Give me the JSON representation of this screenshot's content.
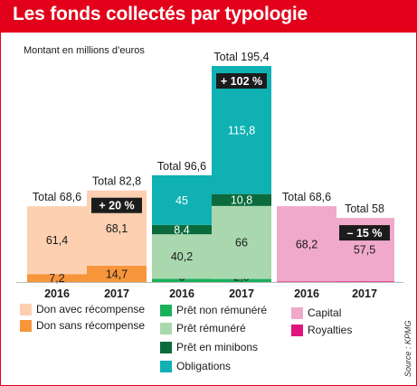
{
  "title": "Les fonds collectés par typologie",
  "subtitle": "Montant en millions d’euros",
  "source": "Source : KPMG",
  "chart_data": {
    "type": "bar",
    "stacked": true,
    "ylabel": "Montant en millions d’euros",
    "ylim": [
      0,
      195.4
    ],
    "groups": [
      {
        "bars": [
          {
            "year": "2016",
            "total_label": "Total 68,6",
            "change_label": "",
            "segments": [
              {
                "series": "Don sans récompense",
                "value": 7.2,
                "label": "7,2"
              },
              {
                "series": "Don avec récompense",
                "value": 61.4,
                "label": "61,4"
              }
            ]
          },
          {
            "year": "2017",
            "total_label": "Total 82,8",
            "change_label": "+ 20 %",
            "segments": [
              {
                "series": "Don sans récompense",
                "value": 14.7,
                "label": "14,7"
              },
              {
                "series": "Don avec récompense",
                "value": 68.1,
                "label": "68,1"
              }
            ]
          }
        ]
      },
      {
        "bars": [
          {
            "year": "2016",
            "total_label": "Total 96,6",
            "change_label": "",
            "segments": [
              {
                "series": "Prêt non rémunéré",
                "value": 3,
                "label": "3"
              },
              {
                "series": "Prêt rémunéré",
                "value": 40.2,
                "label": "40,2"
              },
              {
                "series": "Prêt en minibons",
                "value": 8.4,
                "label": "8,4"
              },
              {
                "series": "Obligations",
                "value": 45,
                "label": "45"
              }
            ]
          },
          {
            "year": "2017",
            "total_label": "Total 195,4",
            "change_label": "+ 102 %",
            "segments": [
              {
                "series": "Prêt non rémunéré",
                "value": 2.8,
                "label": "2,8"
              },
              {
                "series": "Prêt rémunéré",
                "value": 66,
                "label": "66"
              },
              {
                "series": "Prêt en minibons",
                "value": 10.8,
                "label": "10,8"
              },
              {
                "series": "Obligations",
                "value": 115.8,
                "label": "115,8"
              }
            ]
          }
        ]
      },
      {
        "bars": [
          {
            "year": "2016",
            "total_label": "Total 68,6",
            "change_label": "",
            "segments": [
              {
                "series": "Royalties",
                "value": 0.4,
                "label": "0,4"
              },
              {
                "series": "Capital",
                "value": 68.2,
                "label": "68,2"
              }
            ]
          },
          {
            "year": "2017",
            "total_label": "Total 58",
            "change_label": "– 15 %",
            "segments": [
              {
                "series": "Royalties",
                "value": 0.5,
                "label": "0,5"
              },
              {
                "series": "Capital",
                "value": 57.5,
                "label": "57,5"
              }
            ]
          }
        ]
      }
    ],
    "series": [
      {
        "name": "Don avec récompense",
        "color": "#fcd0b1"
      },
      {
        "name": "Don sans récompense",
        "color": "#f7953a"
      },
      {
        "name": "Prêt non rémunéré",
        "color": "#1bb05b"
      },
      {
        "name": "Prêt rémunéré",
        "color": "#a9d8ae"
      },
      {
        "name": "Prêt en minibons",
        "color": "#0b6b3c"
      },
      {
        "name": "Obligations",
        "color": "#0fb1b3"
      },
      {
        "name": "Capital",
        "color": "#f0a9cb"
      },
      {
        "name": "Royalties",
        "color": "#e0157e"
      }
    ],
    "grid": false,
    "legend_position": "bottom"
  }
}
